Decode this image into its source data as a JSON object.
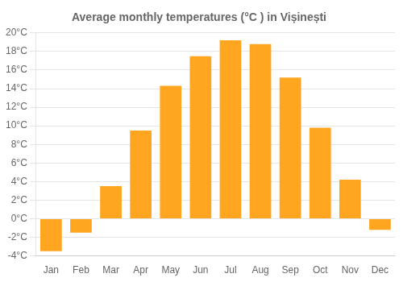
{
  "chart_data": {
    "type": "bar",
    "title": "Average monthly temperatures (°C ) in Vișinești",
    "categories": [
      "Jan",
      "Feb",
      "Mar",
      "Apr",
      "May",
      "Jun",
      "Jul",
      "Aug",
      "Sep",
      "Oct",
      "Nov",
      "Dec"
    ],
    "values": [
      -3.5,
      -1.5,
      3.5,
      9.5,
      14.3,
      17.5,
      19.2,
      18.8,
      15.2,
      9.8,
      4.2,
      -1.2
    ],
    "color": "#FFA520",
    "ylim": [
      -4,
      20
    ],
    "yticks": [
      {
        "value": -4,
        "label": "-4°C"
      },
      {
        "value": -2,
        "label": "-2°C"
      },
      {
        "value": 0,
        "label": "0°C"
      },
      {
        "value": 2,
        "label": "2°C"
      },
      {
        "value": 4,
        "label": "4°C"
      },
      {
        "value": 6,
        "label": "6°C"
      },
      {
        "value": 8,
        "label": "8°C"
      },
      {
        "value": 10,
        "label": "10°C"
      },
      {
        "value": 12,
        "label": "12°C"
      },
      {
        "value": 14,
        "label": "14°C"
      },
      {
        "value": 16,
        "label": "16°C"
      },
      {
        "value": 18,
        "label": "18°C"
      },
      {
        "value": 20,
        "label": "20°C"
      }
    ],
    "grid": true
  }
}
